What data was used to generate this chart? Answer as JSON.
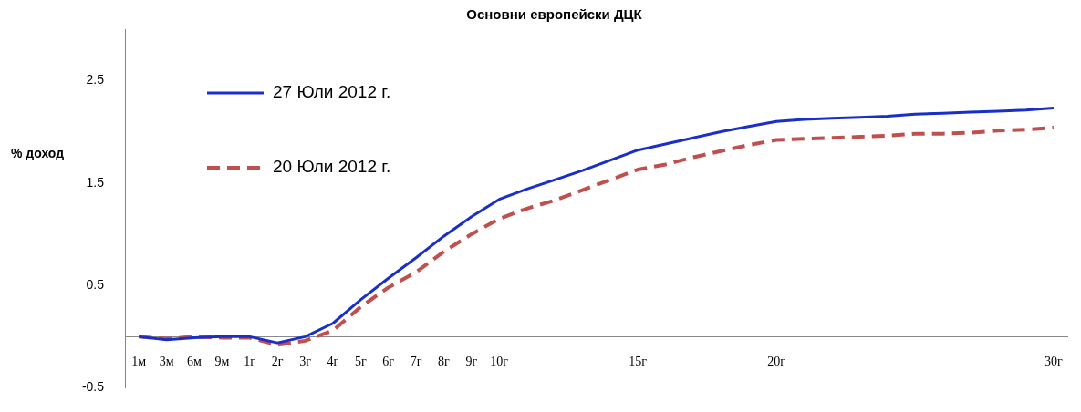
{
  "chart_data": {
    "type": "line",
    "title": "Основни европейски ДЦК",
    "ylabel": "% доход",
    "categories": [
      "1м",
      "3м",
      "6м",
      "9м",
      "1г",
      "2г",
      "3г",
      "4г",
      "5г",
      "6г",
      "7г",
      "8г",
      "9г",
      "10г",
      null,
      null,
      null,
      null,
      "15г",
      null,
      null,
      null,
      null,
      "20г",
      null,
      null,
      null,
      null,
      null,
      null,
      null,
      null,
      null,
      "30г"
    ],
    "series": [
      {
        "name": "27 Юли 2012 г.",
        "color": "#1a2fc8",
        "line_style": "solid",
        "values": [
          0.0,
          -0.03,
          -0.01,
          0.0,
          0.0,
          -0.06,
          0.0,
          0.13,
          0.36,
          0.57,
          0.77,
          0.98,
          1.17,
          1.34,
          1.44,
          1.53,
          1.62,
          1.72,
          1.82,
          1.88,
          1.94,
          2.0,
          2.05,
          2.1,
          2.12,
          2.13,
          2.14,
          2.15,
          2.17,
          2.18,
          2.19,
          2.2,
          2.21,
          2.23
        ]
      },
      {
        "name": "20 Юли 2012 г.",
        "color": "#c0504d",
        "line_style": "dashed",
        "values": [
          0.0,
          -0.02,
          0.0,
          -0.01,
          -0.01,
          -0.08,
          -0.04,
          0.06,
          0.29,
          0.48,
          0.63,
          0.83,
          1.0,
          1.15,
          1.25,
          1.33,
          1.43,
          1.53,
          1.63,
          1.68,
          1.75,
          1.81,
          1.87,
          1.92,
          1.93,
          1.94,
          1.95,
          1.96,
          1.98,
          1.98,
          1.99,
          2.01,
          2.02,
          2.04
        ]
      }
    ],
    "ylim": [
      -0.5,
      3.0
    ],
    "yticks": [
      -0.5,
      0.5,
      1.5,
      2.5
    ],
    "grid": false,
    "legend": "top left",
    "marker": "none"
  }
}
